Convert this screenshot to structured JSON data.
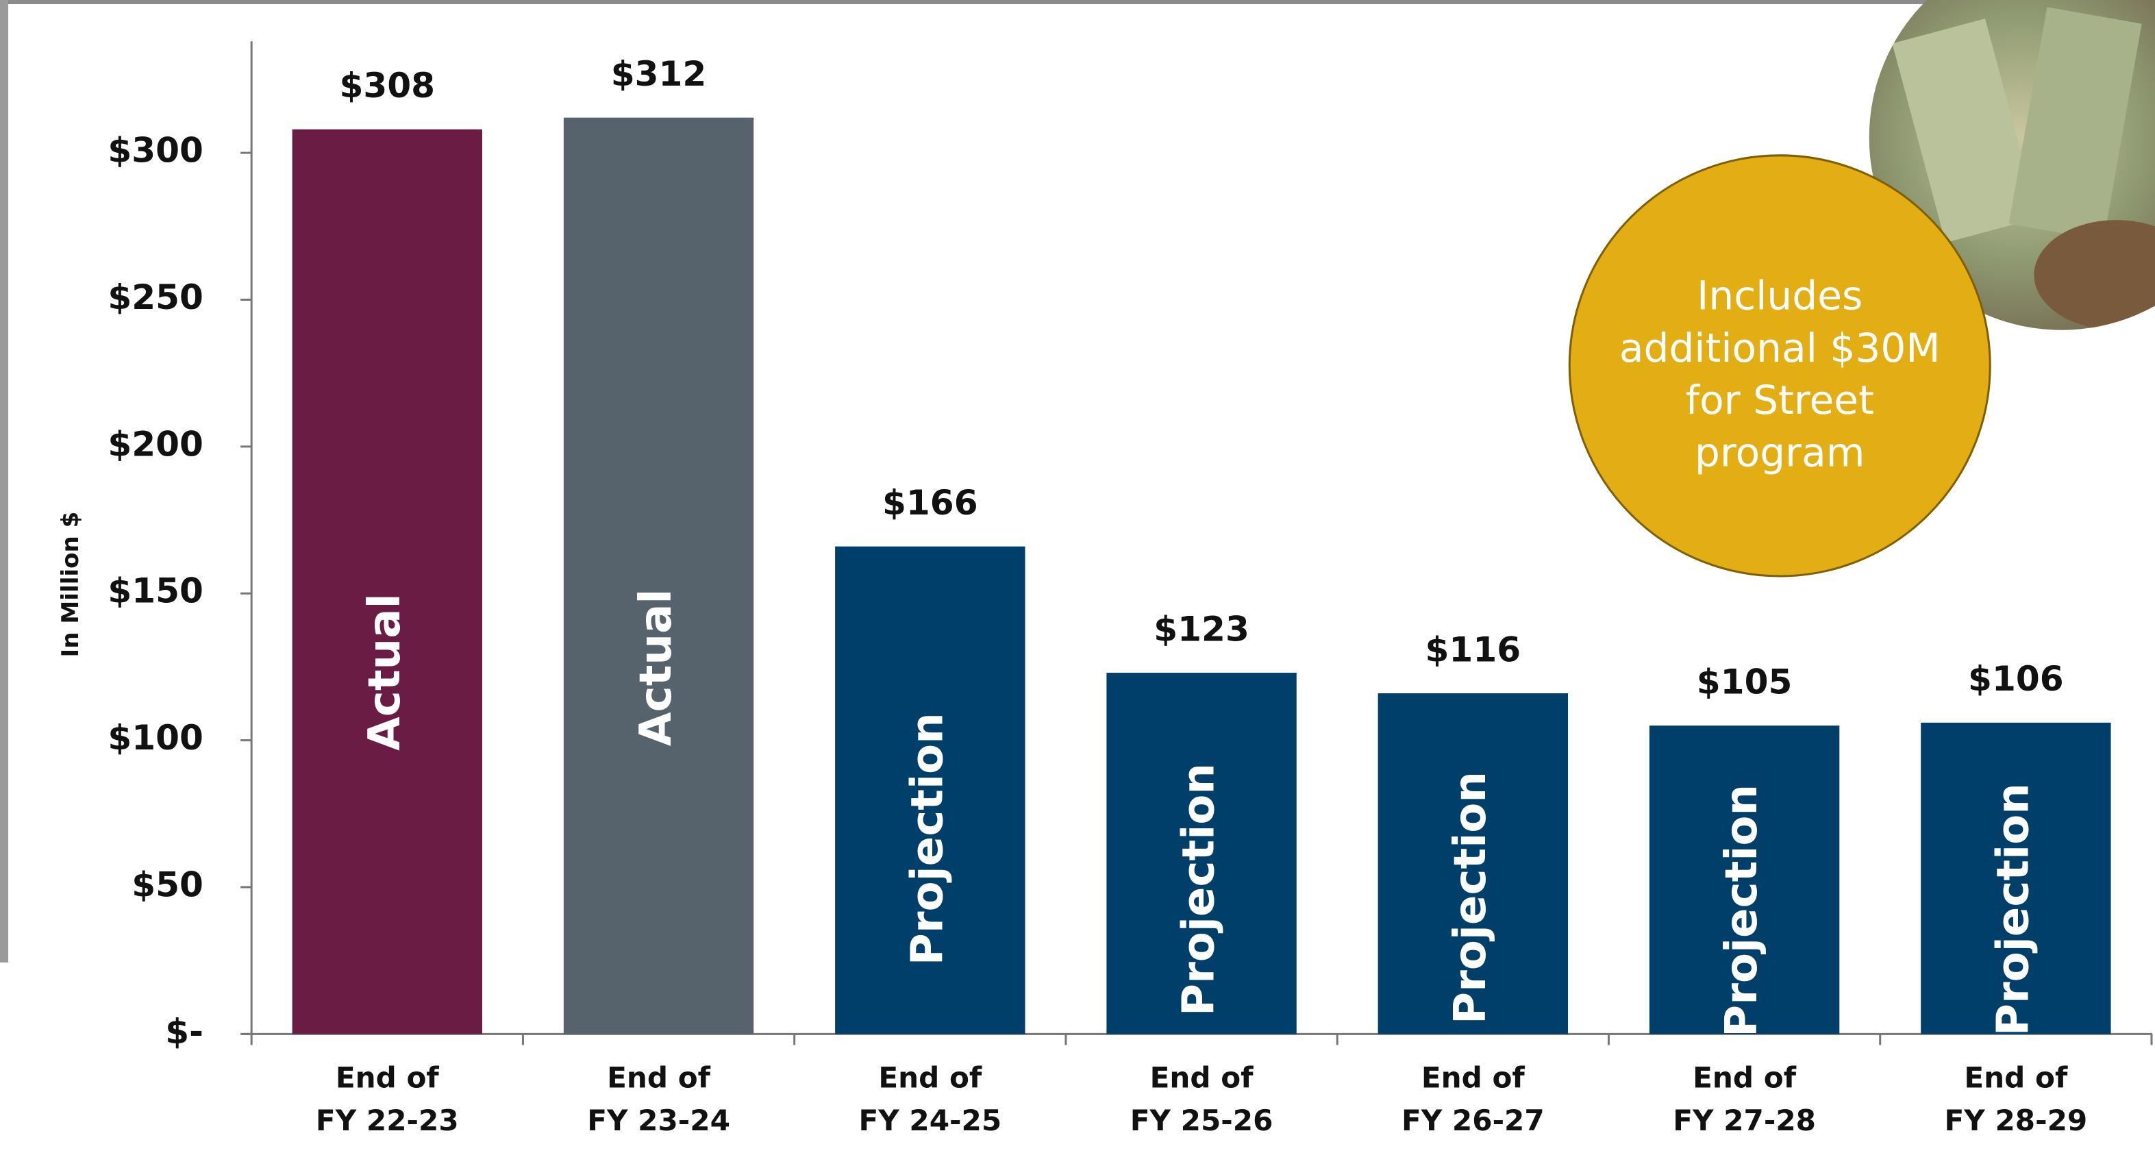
{
  "chart_data": {
    "type": "bar",
    "y_label": "In Million $",
    "categories": [
      "End of FY 22-23",
      "End of FY 23-24",
      "End of FY 24-25",
      "End of FY 25-26",
      "End of FY 26-27",
      "End of FY 27-28",
      "End of FY 28-29"
    ],
    "values": [
      308,
      312,
      166,
      123,
      116,
      105,
      106
    ],
    "value_labels": [
      "$308",
      "$312",
      "$166",
      "$123",
      "$116",
      "$105",
      "$106"
    ],
    "bar_labels": [
      "Actual",
      "Actual",
      "Projection",
      "Projection",
      "Projection",
      "Projection",
      "Projection"
    ],
    "colors": [
      "#6a1c44",
      "#56636d",
      "#003f6a",
      "#003f6a",
      "#003f6a",
      "#003f6a",
      "#003f6a"
    ],
    "ylim": [
      0,
      338
    ],
    "yticks": [
      {
        "value": 0,
        "label": "$-"
      },
      {
        "value": 50,
        "label": "$50"
      },
      {
        "value": 100,
        "label": "$100"
      },
      {
        "value": 150,
        "label": "$150"
      },
      {
        "value": 200,
        "label": "$200"
      },
      {
        "value": 250,
        "label": "$250"
      },
      {
        "value": 300,
        "label": "$300"
      }
    ],
    "annotation": "Includes additional $30M for Street program"
  }
}
